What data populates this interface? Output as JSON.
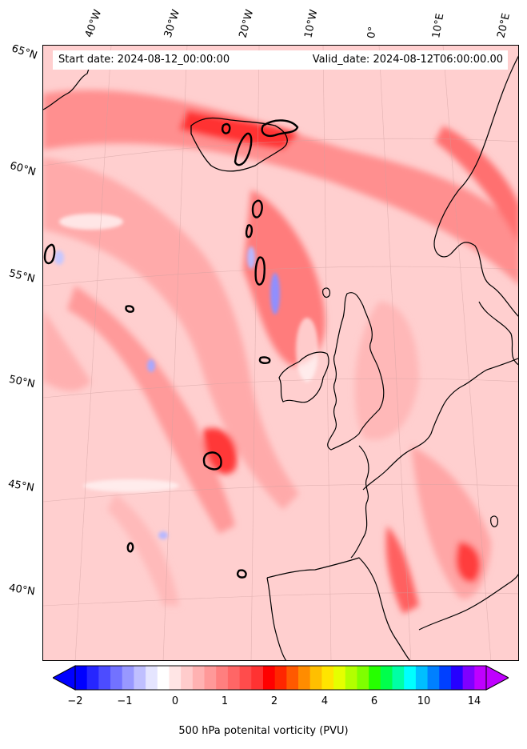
{
  "header": {
    "start_date": "Start date: 2024-08-12_00:00:00",
    "valid_date": "Valid_date: 2024-08-12T06:00:00.00"
  },
  "map": {
    "longitude_labels": [
      "40°W",
      "30°W",
      "20°W",
      "10°W",
      "0°",
      "10°E",
      "20°E"
    ],
    "latitude_labels": [
      "65°N",
      "60°N",
      "55°N",
      "50°N",
      "45°N",
      "40°N"
    ],
    "variable": "500 hPa potential vorticity",
    "coastline_color": "#000000"
  },
  "colorbar": {
    "title": "500 hPa potenital vorticity (PVU)",
    "tick_labels": [
      "−2",
      "−1",
      "0",
      "1",
      "2",
      "4",
      "6",
      "10",
      "14"
    ],
    "colors": [
      "#0000ff",
      "#2626ff",
      "#4c4cff",
      "#7272ff",
      "#9898ff",
      "#bfbfff",
      "#e5e5ff",
      "#ffffff",
      "#ffe5e5",
      "#ffcccc",
      "#ffb2b2",
      "#ff9999",
      "#ff7f7f",
      "#ff6666",
      "#ff4c4c",
      "#ff3232",
      "#ff0000",
      "#ff2600",
      "#ff5900",
      "#ff8c00",
      "#ffbf00",
      "#ffe500",
      "#e5ff00",
      "#b2ff00",
      "#7fff00",
      "#26ff00",
      "#00ff4c",
      "#00ffa5",
      "#00ffff",
      "#00bfff",
      "#0080ff",
      "#0040ff",
      "#2600ff",
      "#7f00ff",
      "#bf00ff"
    ],
    "extend_low_color": "#0000ff",
    "extend_high_color": "#bf00ff"
  }
}
